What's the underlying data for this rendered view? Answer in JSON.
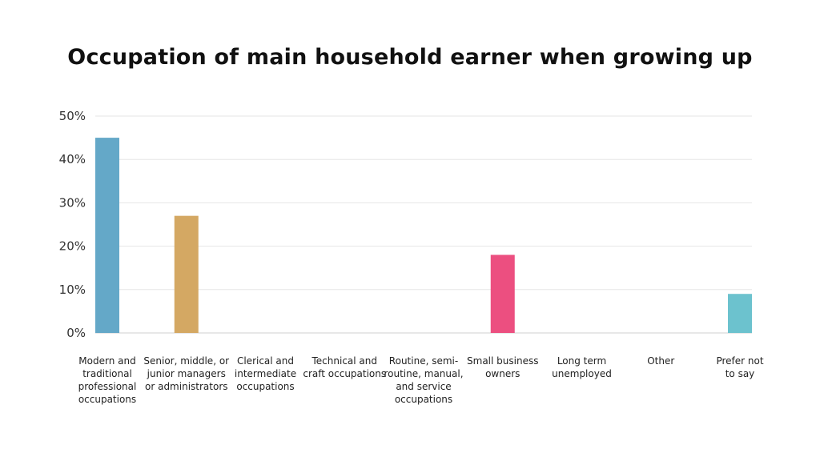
{
  "chart_data": {
    "type": "bar",
    "title": "Occupation of main household earner when growing up",
    "xlabel": "",
    "ylabel": "",
    "ylim": [
      0,
      50
    ],
    "y_ticks": [
      "0%",
      "10%",
      "20%",
      "30%",
      "40%",
      "50%"
    ],
    "grid": true,
    "categories": [
      "Modern and traditional professional occupations",
      "Senior, middle, or junior managers or administrators",
      "Clerical and intermediate occupations",
      "Technical and craft occupations",
      "Routine, semi-routine, manual, and service occupations",
      "Small business owners",
      "Long term unemployed",
      "Other",
      "Prefer not to say"
    ],
    "category_lines": [
      [
        "Modern and",
        "traditional",
        "professional",
        "occupations"
      ],
      [
        "Senior, middle, or",
        "junior managers",
        "or administrators"
      ],
      [
        "Clerical and",
        "intermediate",
        "occupations"
      ],
      [
        "Technical and",
        "craft occupations"
      ],
      [
        "Routine, semi-",
        "routine, manual,",
        "and service",
        "occupations"
      ],
      [
        "Small business",
        "owners"
      ],
      [
        "Long term",
        "unemployed"
      ],
      [
        "Other"
      ],
      [
        "Prefer not",
        "to say"
      ]
    ],
    "values": [
      45,
      27,
      0,
      0,
      0,
      18,
      0,
      0,
      9
    ],
    "colors": [
      "#64a8c8",
      "#d4a863",
      "#cccccc",
      "#cccccc",
      "#cccccc",
      "#ec4f80",
      "#cccccc",
      "#cccccc",
      "#6cc2ce"
    ]
  }
}
